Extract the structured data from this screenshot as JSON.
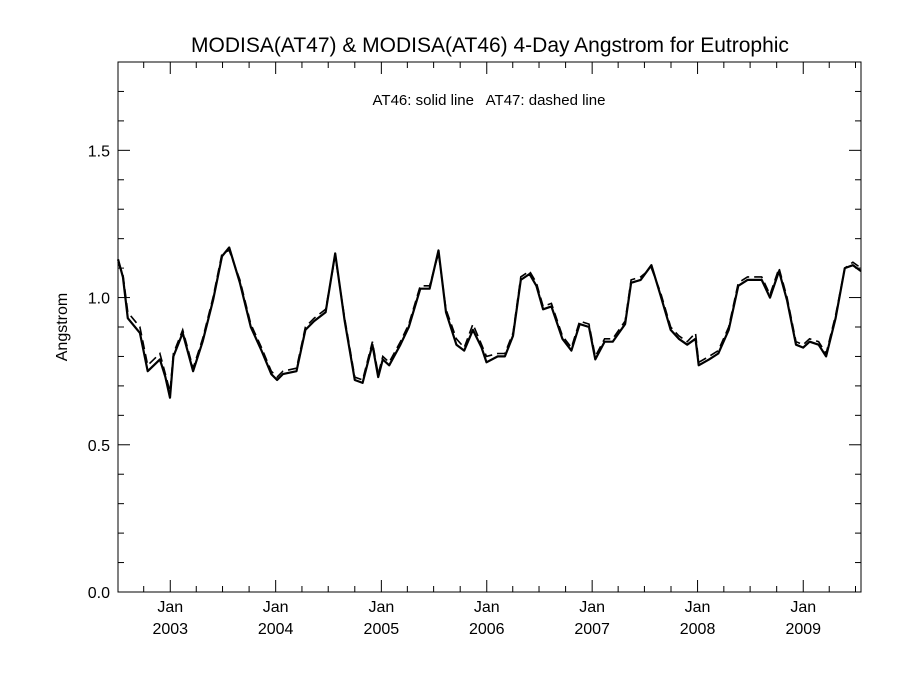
{
  "chart_data": {
    "type": "line",
    "title": "MODISA(AT47) & MODISA(AT46) 4-Day Angstrom for Eutrophic",
    "annotation": "AT46: solid line   AT47: dashed line",
    "xlabel": "",
    "ylabel": "Angstrom",
    "xlim": [
      "2002-07-04",
      "2009-07-20"
    ],
    "ylim": [
      0.0,
      1.8
    ],
    "y_ticks": [
      {
        "value": 0.0,
        "label": "0.0"
      },
      {
        "value": 0.5,
        "label": "0.5"
      },
      {
        "value": 1.0,
        "label": "1.0"
      },
      {
        "value": 1.5,
        "label": "1.5"
      }
    ],
    "x_ticks": [
      {
        "date": "2003-01-01",
        "month": "Jan",
        "year": "2003"
      },
      {
        "date": "2004-01-01",
        "month": "Jan",
        "year": "2004"
      },
      {
        "date": "2005-01-01",
        "month": "Jan",
        "year": "2005"
      },
      {
        "date": "2006-01-01",
        "month": "Jan",
        "year": "2006"
      },
      {
        "date": "2007-01-01",
        "month": "Jan",
        "year": "2007"
      },
      {
        "date": "2008-01-01",
        "month": "Jan",
        "year": "2008"
      },
      {
        "date": "2009-01-01",
        "month": "Jan",
        "year": "2009"
      }
    ],
    "grid": false,
    "series": [
      {
        "name": "AT46",
        "style": "solid",
        "color": "#000000",
        "points": [
          [
            "2002-07-04",
            1.13
          ],
          [
            "2002-07-21",
            1.07
          ],
          [
            "2002-08-07",
            0.93
          ],
          [
            "2002-09-18",
            0.88
          ],
          [
            "2002-10-15",
            0.75
          ],
          [
            "2002-11-26",
            0.79
          ],
          [
            "2002-12-15",
            0.73
          ],
          [
            "2002-12-31",
            0.66
          ],
          [
            "2003-01-12",
            0.8
          ],
          [
            "2003-02-13",
            0.88
          ],
          [
            "2003-03-21",
            0.75
          ],
          [
            "2003-04-23",
            0.85
          ],
          [
            "2003-05-29",
            0.99
          ],
          [
            "2003-06-29",
            1.14
          ],
          [
            "2003-07-24",
            1.17
          ],
          [
            "2003-08-30",
            1.05
          ],
          [
            "2003-10-07",
            0.9
          ],
          [
            "2003-11-13",
            0.82
          ],
          [
            "2003-12-17",
            0.74
          ],
          [
            "2004-01-06",
            0.72
          ],
          [
            "2004-01-26",
            0.74
          ],
          [
            "2004-03-13",
            0.75
          ],
          [
            "2004-04-13",
            0.89
          ],
          [
            "2004-05-13",
            0.92
          ],
          [
            "2004-06-22",
            0.95
          ],
          [
            "2004-07-25",
            1.15
          ],
          [
            "2004-08-27",
            0.92
          ],
          [
            "2004-10-01",
            0.72
          ],
          [
            "2004-10-28",
            0.71
          ],
          [
            "2004-12-01",
            0.84
          ],
          [
            "2004-12-21",
            0.73
          ],
          [
            "2005-01-06",
            0.79
          ],
          [
            "2005-01-28",
            0.77
          ],
          [
            "2005-03-08",
            0.84
          ],
          [
            "2005-04-06",
            0.9
          ],
          [
            "2005-05-16",
            1.03
          ],
          [
            "2005-06-17",
            1.03
          ],
          [
            "2005-07-18",
            1.16
          ],
          [
            "2005-08-13",
            0.95
          ],
          [
            "2005-09-18",
            0.84
          ],
          [
            "2005-10-15",
            0.82
          ],
          [
            "2005-11-14",
            0.89
          ],
          [
            "2005-12-14",
            0.83
          ],
          [
            "2005-12-31",
            0.78
          ],
          [
            "2006-02-08",
            0.8
          ],
          [
            "2006-03-05",
            0.8
          ],
          [
            "2006-04-02",
            0.87
          ],
          [
            "2006-04-29",
            1.06
          ],
          [
            "2006-05-29",
            1.08
          ],
          [
            "2006-06-22",
            1.04
          ],
          [
            "2006-07-15",
            0.96
          ],
          [
            "2006-08-13",
            0.97
          ],
          [
            "2006-09-20",
            0.86
          ],
          [
            "2006-10-21",
            0.82
          ],
          [
            "2006-11-19",
            0.91
          ],
          [
            "2006-12-21",
            0.9
          ],
          [
            "2007-01-12",
            0.79
          ],
          [
            "2007-02-13",
            0.85
          ],
          [
            "2007-03-13",
            0.85
          ],
          [
            "2007-04-25",
            0.91
          ],
          [
            "2007-05-16",
            1.05
          ],
          [
            "2007-06-18",
            1.06
          ],
          [
            "2007-07-25",
            1.11
          ],
          [
            "2007-08-25",
            1.01
          ],
          [
            "2007-09-30",
            0.89
          ],
          [
            "2007-10-28",
            0.86
          ],
          [
            "2007-11-26",
            0.84
          ],
          [
            "2007-12-25",
            0.86
          ],
          [
            "2008-01-05",
            0.77
          ],
          [
            "2008-02-10",
            0.79
          ],
          [
            "2008-03-13",
            0.81
          ],
          [
            "2008-04-18",
            0.89
          ],
          [
            "2008-05-21",
            1.04
          ],
          [
            "2008-06-22",
            1.06
          ],
          [
            "2008-07-13",
            1.06
          ],
          [
            "2008-08-10",
            1.06
          ],
          [
            "2008-09-08",
            1.0
          ],
          [
            "2008-10-09",
            1.09
          ],
          [
            "2008-11-06",
            0.99
          ],
          [
            "2008-12-07",
            0.84
          ],
          [
            "2009-01-01",
            0.83
          ],
          [
            "2009-01-23",
            0.85
          ],
          [
            "2009-02-23",
            0.84
          ],
          [
            "2009-03-21",
            0.8
          ],
          [
            "2009-04-23",
            0.93
          ],
          [
            "2009-05-25",
            1.1
          ],
          [
            "2009-06-22",
            1.11
          ],
          [
            "2009-07-20",
            1.09
          ]
        ]
      },
      {
        "name": "AT47",
        "style": "dashed",
        "color": "#000000",
        "points": [
          [
            "2002-07-04",
            1.12
          ],
          [
            "2002-07-21",
            1.08
          ],
          [
            "2002-08-07",
            0.95
          ],
          [
            "2002-09-18",
            0.9
          ],
          [
            "2002-10-15",
            0.77
          ],
          [
            "2002-11-26",
            0.81
          ],
          [
            "2002-12-15",
            0.74
          ],
          [
            "2002-12-31",
            0.68
          ],
          [
            "2003-01-12",
            0.81
          ],
          [
            "2003-02-13",
            0.89
          ],
          [
            "2003-03-21",
            0.76
          ],
          [
            "2003-04-23",
            0.86
          ],
          [
            "2003-05-29",
            1.0
          ],
          [
            "2003-06-29",
            1.15
          ],
          [
            "2003-07-24",
            1.16
          ],
          [
            "2003-08-30",
            1.06
          ],
          [
            "2003-10-07",
            0.91
          ],
          [
            "2003-11-13",
            0.83
          ],
          [
            "2003-12-17",
            0.75
          ],
          [
            "2004-01-06",
            0.73
          ],
          [
            "2004-01-26",
            0.75
          ],
          [
            "2004-03-13",
            0.76
          ],
          [
            "2004-04-13",
            0.9
          ],
          [
            "2004-05-13",
            0.93
          ],
          [
            "2004-06-22",
            0.96
          ],
          [
            "2004-07-25",
            1.14
          ],
          [
            "2004-08-27",
            0.93
          ],
          [
            "2004-10-01",
            0.73
          ],
          [
            "2004-10-28",
            0.72
          ],
          [
            "2004-12-01",
            0.85
          ],
          [
            "2004-12-21",
            0.74
          ],
          [
            "2005-01-06",
            0.8
          ],
          [
            "2005-01-28",
            0.78
          ],
          [
            "2005-03-08",
            0.85
          ],
          [
            "2005-04-06",
            0.91
          ],
          [
            "2005-05-16",
            1.04
          ],
          [
            "2005-06-17",
            1.04
          ],
          [
            "2005-07-18",
            1.15
          ],
          [
            "2005-08-13",
            0.96
          ],
          [
            "2005-09-18",
            0.86
          ],
          [
            "2005-10-15",
            0.83
          ],
          [
            "2005-11-14",
            0.91
          ],
          [
            "2005-12-14",
            0.84
          ],
          [
            "2005-12-31",
            0.8
          ],
          [
            "2006-02-08",
            0.81
          ],
          [
            "2006-03-05",
            0.81
          ],
          [
            "2006-04-02",
            0.88
          ],
          [
            "2006-04-29",
            1.07
          ],
          [
            "2006-05-29",
            1.09
          ],
          [
            "2006-06-22",
            1.05
          ],
          [
            "2006-07-15",
            0.97
          ],
          [
            "2006-08-13",
            0.98
          ],
          [
            "2006-09-20",
            0.87
          ],
          [
            "2006-10-21",
            0.83
          ],
          [
            "2006-11-19",
            0.92
          ],
          [
            "2006-12-21",
            0.91
          ],
          [
            "2007-01-12",
            0.8
          ],
          [
            "2007-02-13",
            0.86
          ],
          [
            "2007-03-13",
            0.86
          ],
          [
            "2007-04-25",
            0.92
          ],
          [
            "2007-05-16",
            1.06
          ],
          [
            "2007-06-18",
            1.07
          ],
          [
            "2007-07-25",
            1.1
          ],
          [
            "2007-08-25",
            1.02
          ],
          [
            "2007-09-30",
            0.9
          ],
          [
            "2007-10-28",
            0.87
          ],
          [
            "2007-11-26",
            0.85
          ],
          [
            "2007-12-25",
            0.88
          ],
          [
            "2008-01-05",
            0.78
          ],
          [
            "2008-02-10",
            0.8
          ],
          [
            "2008-03-13",
            0.82
          ],
          [
            "2008-04-18",
            0.9
          ],
          [
            "2008-05-21",
            1.05
          ],
          [
            "2008-06-22",
            1.07
          ],
          [
            "2008-07-13",
            1.07
          ],
          [
            "2008-08-10",
            1.07
          ],
          [
            "2008-09-08",
            1.01
          ],
          [
            "2008-10-09",
            1.1
          ],
          [
            "2008-11-06",
            1.0
          ],
          [
            "2008-12-07",
            0.85
          ],
          [
            "2009-01-01",
            0.84
          ],
          [
            "2009-01-23",
            0.86
          ],
          [
            "2009-02-23",
            0.85
          ],
          [
            "2009-03-21",
            0.81
          ],
          [
            "2009-04-23",
            0.94
          ],
          [
            "2009-05-25",
            1.1
          ],
          [
            "2009-06-22",
            1.12
          ],
          [
            "2009-07-20",
            1.1
          ]
        ]
      }
    ]
  }
}
